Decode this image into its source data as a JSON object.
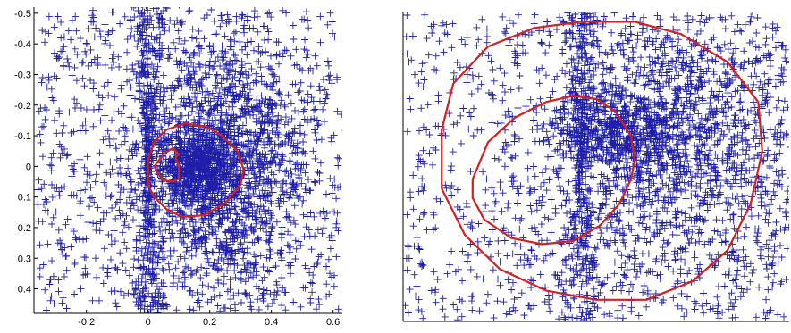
{
  "chart_data": [
    {
      "type": "scatter",
      "title": "",
      "xlabel": "",
      "ylabel": "",
      "xlim": [
        -0.37,
        0.63
      ],
      "ylim": [
        -0.52,
        0.48
      ],
      "y_reversed": true,
      "x_ticks": [
        -0.2,
        0,
        0.2,
        0.4,
        0.6
      ],
      "x_tick_labels": [
        "-0.2",
        "0",
        "0.2",
        "0.4",
        "0.6"
      ],
      "y_ticks": [
        -0.5,
        -0.4,
        -0.3,
        -0.2,
        -0.1,
        0,
        0.1,
        0.2,
        0.3,
        0.4
      ],
      "y_tick_labels": [
        "-0.5",
        "-0.4",
        "-0.3",
        "-0.2",
        "-0.1",
        "0",
        "0.1",
        "0.2",
        "0.3",
        "0.4"
      ],
      "marker": "+",
      "grid": false,
      "colors": {
        "points": "#1f1fa8",
        "contours": "#d42020"
      },
      "clusters": [
        {
          "type": "ellipse",
          "cx": 0.25,
          "cy": 0.0,
          "sx": 0.14,
          "sy": 0.21,
          "n": 1700
        },
        {
          "type": "ellipse",
          "cx": 0.15,
          "cy": 0.0,
          "sx": 0.06,
          "sy": 0.06,
          "n": 500
        },
        {
          "type": "bowtie",
          "cx": 0.0,
          "cy": 0.0,
          "spread": 0.13,
          "half_width": 0.06,
          "n": 800
        },
        {
          "type": "uniform",
          "x": [
            -0.36,
            0.62
          ],
          "y": [
            -0.51,
            0.47
          ],
          "n": 1000
        }
      ],
      "contours": [
        {
          "points": [
            [
              0.0,
              -0.02
            ],
            [
              0.02,
              -0.08
            ],
            [
              0.06,
              -0.12
            ],
            [
              0.12,
              -0.14
            ],
            [
              0.19,
              -0.13
            ],
            [
              0.24,
              -0.1
            ],
            [
              0.29,
              -0.05
            ],
            [
              0.31,
              0.01
            ],
            [
              0.3,
              0.06
            ],
            [
              0.25,
              0.12
            ],
            [
              0.18,
              0.16
            ],
            [
              0.11,
              0.165
            ],
            [
              0.06,
              0.14
            ],
            [
              0.02,
              0.1
            ],
            [
              0.0,
              0.06
            ],
            [
              0.0,
              0.0
            ]
          ]
        },
        {
          "points": [
            [
              0.02,
              0.0
            ],
            [
              0.05,
              -0.04
            ],
            [
              0.08,
              -0.06
            ],
            [
              0.1,
              -0.04
            ],
            [
              0.09,
              -0.03
            ],
            [
              0.1,
              0.0
            ],
            [
              0.1,
              0.04
            ],
            [
              0.08,
              0.05
            ],
            [
              0.05,
              0.045
            ],
            [
              0.03,
              0.02
            ],
            [
              0.02,
              0.0
            ]
          ]
        }
      ]
    },
    {
      "type": "scatter",
      "title": "",
      "xlabel": "",
      "ylabel": "",
      "xlim": [
        0,
        1
      ],
      "ylim": [
        0,
        1
      ],
      "x_ticks": [],
      "y_ticks": [],
      "marker": "+",
      "grid": false,
      "colors": {
        "points": "#1f1fa8",
        "contours": "#d42020"
      },
      "clusters": [
        {
          "type": "ellipse",
          "cx": 0.72,
          "cy": 0.58,
          "sx": 0.17,
          "sy": 0.23,
          "n": 1500
        },
        {
          "type": "ellipse",
          "cx": 0.55,
          "cy": 0.62,
          "sx": 0.08,
          "sy": 0.07,
          "n": 500
        },
        {
          "type": "bowtie",
          "cx": 0.46,
          "cy": 0.56,
          "spread": 0.14,
          "half_width": 0.06,
          "n": 700
        },
        {
          "type": "uniform",
          "x": [
            0.005,
            0.995
          ],
          "y": [
            0.005,
            0.995
          ],
          "n": 1000
        }
      ],
      "contours": [
        {
          "points": [
            [
              0.1,
              0.62
            ],
            [
              0.13,
              0.77
            ],
            [
              0.22,
              0.89
            ],
            [
              0.34,
              0.95
            ],
            [
              0.46,
              0.97
            ],
            [
              0.6,
              0.97
            ],
            [
              0.72,
              0.93
            ],
            [
              0.84,
              0.84
            ],
            [
              0.92,
              0.71
            ],
            [
              0.93,
              0.55
            ],
            [
              0.9,
              0.38
            ],
            [
              0.84,
              0.23
            ],
            [
              0.75,
              0.13
            ],
            [
              0.63,
              0.07
            ],
            [
              0.5,
              0.07
            ],
            [
              0.37,
              0.1
            ],
            [
              0.25,
              0.17
            ],
            [
              0.16,
              0.28
            ],
            [
              0.1,
              0.43
            ],
            [
              0.1,
              0.62
            ]
          ]
        },
        {
          "points": [
            [
              0.18,
              0.46
            ],
            [
              0.22,
              0.58
            ],
            [
              0.29,
              0.66
            ],
            [
              0.37,
              0.71
            ],
            [
              0.44,
              0.73
            ],
            [
              0.5,
              0.72
            ],
            [
              0.55,
              0.68
            ],
            [
              0.59,
              0.6
            ],
            [
              0.6,
              0.52
            ],
            [
              0.59,
              0.46
            ],
            [
              0.56,
              0.38
            ],
            [
              0.51,
              0.31
            ],
            [
              0.44,
              0.26
            ],
            [
              0.36,
              0.25
            ],
            [
              0.28,
              0.27
            ],
            [
              0.21,
              0.33
            ],
            [
              0.18,
              0.4
            ],
            [
              0.18,
              0.46
            ]
          ]
        }
      ]
    }
  ]
}
